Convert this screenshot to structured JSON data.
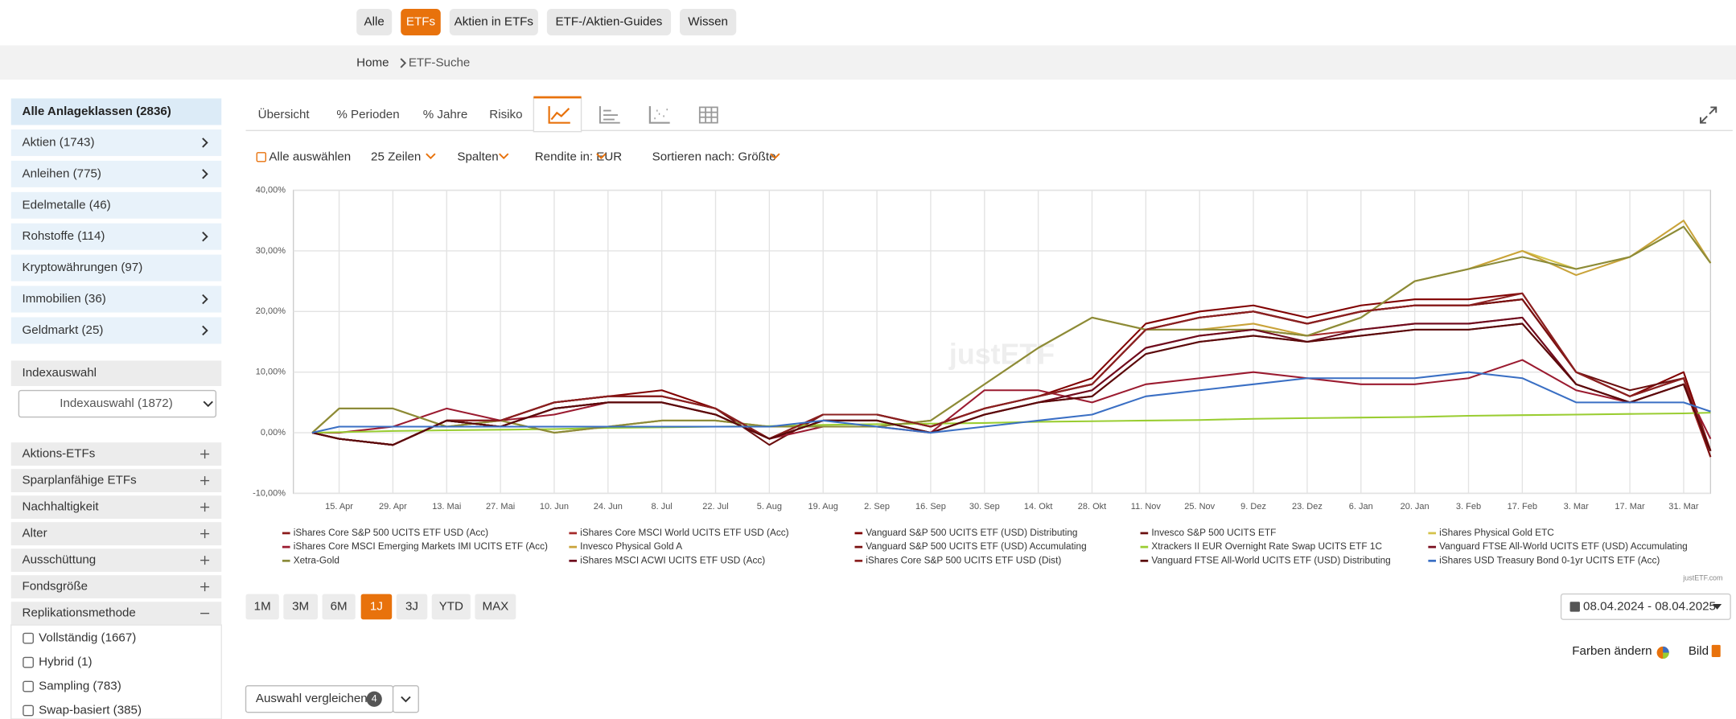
{
  "nav": {
    "items": [
      "Alle",
      "ETFs",
      "Aktien in ETFs",
      "ETF-/Aktien-Guides",
      "Wissen"
    ]
  },
  "breadcrumb": [
    "Home",
    "ETF-Suche"
  ],
  "sidebar": {
    "all": "Alle Anlageklassen (2836)",
    "asset_classes": [
      "Aktien (1743)",
      "Anleihen (775)",
      "Edelmetalle (46)",
      "Rohstoffe (114)",
      "Kryptowährungen (97)",
      "Immobilien (36)",
      "Geldmarkt (25)"
    ],
    "index_header": "Indexauswahl",
    "index_select": "Indexauswahl (1872)",
    "filters": [
      "Aktions-ETFs",
      "Sparplanfähige ETFs",
      "Nachhaltigkeit",
      "Alter",
      "Ausschüttung",
      "Fondsgröße",
      "Replikationsmethode"
    ],
    "options": [
      "Vollständig (1667)",
      "Hybrid (1)",
      "Sampling (783)",
      "Swap-basiert (385)"
    ]
  },
  "tabs": [
    "Übersicht",
    "% Perioden",
    "% Jahre",
    "Risiko"
  ],
  "toolbar": [
    "Alle auswählen",
    "25 Zeilen",
    "Spalten",
    "Rendite in: EUR",
    "Sortieren nach: Größte"
  ],
  "chart_data": {
    "type": "line",
    "watermark": "justETF",
    "credit": "justETF.com",
    "categories": [
      null,
      "15. Apr",
      "29. Apr",
      "13. Mai",
      "27. Mai",
      "10. Jun",
      "24. Jun",
      "8. Jul",
      "22. Jul",
      "5. Aug",
      "19. Aug",
      "2. Sep",
      "16. Sep",
      "30. Sep",
      "14. Okt",
      "28. Okt",
      "11. Nov",
      "25. Nov",
      "9. Dez",
      "23. Dez",
      "6. Jan",
      "20. Jan",
      "3. Feb",
      "17. Feb",
      "3. Mar",
      "17. Mar",
      "31. Mar",
      null
    ],
    "ylim": [
      -10,
      40
    ],
    "yticks": [
      {
        "value": -10,
        "label": "-10,00%"
      },
      {
        "value": 0,
        "label": "0,00%"
      },
      {
        "value": 10,
        "label": "10,00%"
      },
      {
        "value": 20,
        "label": "20,00%"
      },
      {
        "value": 30,
        "label": "30,00%"
      },
      {
        "value": 40,
        "label": "40,00%"
      }
    ],
    "grid": true,
    "series": [
      {
        "name": "iShares Core S&P 500 UCITS ETF USD (Acc)",
        "color": "#8b1a1a",
        "values": [
          0,
          -1,
          -2,
          2,
          2,
          5,
          6,
          6,
          4,
          -1,
          3,
          3,
          1,
          4,
          6,
          8,
          17,
          19,
          20,
          18,
          20,
          21,
          21,
          22,
          10,
          6,
          9,
          -3
        ]
      },
      {
        "name": "iShares Core MSCI World UCITS ETF USD (Acc)",
        "color": "#a52a2a",
        "values": [
          0,
          -1,
          -2,
          2,
          1,
          4,
          5,
          5,
          3,
          -1,
          2,
          2,
          0,
          3,
          5,
          7,
          14,
          16,
          17,
          16,
          17,
          18,
          18,
          19,
          8,
          5,
          8,
          -4
        ]
      },
      {
        "name": "Vanguard S&P 500 UCITS ETF (USD) Distributing",
        "color": "#800000",
        "values": [
          0,
          -1,
          -2,
          2,
          2,
          5,
          6,
          7,
          4,
          -1,
          3,
          3,
          1,
          4,
          6,
          9,
          18,
          20,
          21,
          19,
          21,
          22,
          22,
          23,
          10,
          6,
          10,
          -3
        ]
      },
      {
        "name": "Invesco S&P 500 UCITS ETF",
        "color": "#6b0f0f",
        "values": [
          0,
          -1,
          -2,
          2,
          2,
          5,
          6,
          6,
          4,
          -2,
          3,
          3,
          1,
          4,
          6,
          8,
          17,
          19,
          20,
          18,
          20,
          21,
          21,
          22,
          10,
          7,
          9,
          -3
        ]
      },
      {
        "name": "iShares Physical Gold ETC",
        "color": "#d4c24a",
        "values": [
          0,
          4,
          4,
          1,
          2,
          0,
          1,
          2,
          2,
          1,
          1,
          1,
          2,
          8,
          14,
          19,
          17,
          17,
          17,
          16,
          19,
          25,
          27,
          30,
          27,
          29,
          34,
          28
        ]
      },
      {
        "name": "iShares Core MSCI Emerging Markets IMI UCITS ETF (Acc)",
        "color": "#9b1b30",
        "values": [
          0,
          0,
          1,
          4,
          2,
          3,
          5,
          5,
          3,
          -1,
          1,
          1,
          0,
          7,
          7,
          5,
          8,
          9,
          10,
          9,
          8,
          8,
          9,
          12,
          7,
          5,
          8,
          -1
        ]
      },
      {
        "name": "Invesco Physical Gold A",
        "color": "#c9a33a",
        "values": [
          0,
          4,
          4,
          1,
          2,
          0,
          1,
          2,
          2,
          1,
          1,
          1,
          2,
          8,
          14,
          19,
          17,
          17,
          18,
          16,
          19,
          25,
          27,
          30,
          26,
          29,
          35,
          28
        ]
      },
      {
        "name": "Vanguard S&P 500 UCITS ETF (USD) Accumulating",
        "color": "#7a1010",
        "values": [
          0,
          -1,
          -2,
          2,
          2,
          5,
          6,
          6,
          4,
          -1,
          3,
          3,
          1,
          4,
          6,
          8,
          17,
          19,
          20,
          18,
          20,
          21,
          21,
          22,
          10,
          6,
          9,
          -4
        ]
      },
      {
        "name": "Xtrackers II EUR Overnight Rate Swap UCITS ETF 1C",
        "color": "#9acd32",
        "values": [
          0,
          0.1,
          0.3,
          0.4,
          0.5,
          0.6,
          0.8,
          0.9,
          1,
          1.1,
          1.3,
          1.4,
          1.5,
          1.6,
          1.8,
          1.9,
          2,
          2.1,
          2.3,
          2.4,
          2.5,
          2.6,
          2.8,
          2.9,
          3,
          3.1,
          3.2,
          3.3
        ]
      },
      {
        "name": "Vanguard FTSE All-World UCITS ETF (USD) Accumulating",
        "color": "#7a0f1f",
        "values": [
          0,
          -1,
          -2,
          2,
          1,
          4,
          5,
          5,
          3,
          -1,
          2,
          2,
          0,
          3,
          5,
          6,
          13,
          15,
          16,
          15,
          16,
          17,
          17,
          18,
          8,
          5,
          8,
          -3
        ]
      },
      {
        "name": "Xetra-Gold",
        "color": "#8b8b3a",
        "values": [
          0,
          4,
          4,
          1,
          2,
          0,
          1,
          2,
          2,
          1,
          1,
          1,
          2,
          8,
          14,
          19,
          17,
          17,
          17,
          16,
          19,
          25,
          27,
          29,
          27,
          29,
          34,
          28
        ]
      },
      {
        "name": "iShares MSCI ACWI UCITS ETF USD (Acc)",
        "color": "#6e0b1e",
        "values": [
          0,
          -1,
          -2,
          2,
          1,
          4,
          5,
          5,
          3,
          -1,
          2,
          2,
          0,
          3,
          5,
          7,
          14,
          16,
          17,
          15,
          17,
          18,
          18,
          19,
          8,
          5,
          8,
          -3
        ]
      },
      {
        "name": "iShares Core S&P 500 UCITS ETF USD (Dist)",
        "color": "#8b2020",
        "values": [
          0,
          -1,
          -2,
          2,
          2,
          5,
          6,
          6,
          4,
          -1,
          3,
          3,
          1,
          4,
          6,
          8,
          17,
          19,
          20,
          18,
          20,
          21,
          21,
          23,
          10,
          6,
          9,
          -3
        ]
      },
      {
        "name": "Vanguard FTSE All-World UCITS ETF (USD) Distributing",
        "color": "#5a0a0a",
        "values": [
          0,
          -1,
          -2,
          2,
          1,
          4,
          5,
          5,
          3,
          -1,
          2,
          2,
          0,
          3,
          5,
          6,
          13,
          15,
          16,
          15,
          16,
          17,
          17,
          18,
          8,
          5,
          8,
          -3
        ]
      },
      {
        "name": "iShares USD Treasury Bond 0-1yr UCITS ETF (Acc)",
        "color": "#3a6fc4",
        "values": [
          0,
          1,
          1,
          1,
          1,
          1,
          1,
          1,
          1,
          1,
          2,
          1,
          0,
          1,
          2,
          3,
          6,
          7,
          8,
          9,
          9,
          9,
          10,
          9,
          5,
          5,
          5,
          3.5
        ]
      }
    ]
  },
  "ranges": [
    "1M",
    "3M",
    "6M",
    "1J",
    "3J",
    "YTD",
    "MAX"
  ],
  "date_range": "08.04.2024 - 08.04.2025",
  "actions": [
    "Farben ändern",
    "Bild"
  ],
  "compare": {
    "label": "Auswahl vergleichen",
    "count": "4"
  }
}
